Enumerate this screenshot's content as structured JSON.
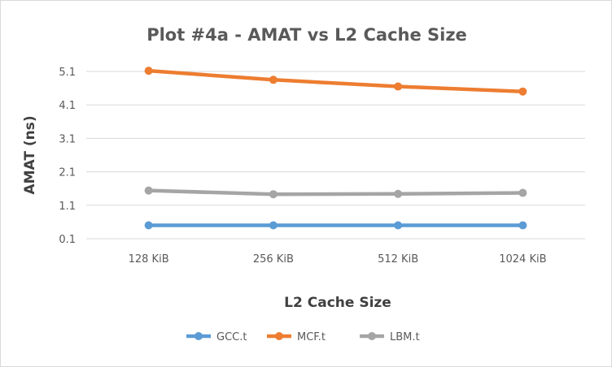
{
  "chart_data": {
    "type": "line",
    "title": "Plot #4a - AMAT vs L2 Cache Size",
    "xlabel": "L2 Cache Size",
    "ylabel": "AMAT (ns)",
    "categories": [
      "128 KiB",
      "256 KiB",
      "512 KiB",
      "1024 KiB"
    ],
    "yticks": [
      "0.1",
      "1.1",
      "2.1",
      "3.1",
      "4.1",
      "5.1"
    ],
    "ylim": [
      0.1,
      5.1
    ],
    "grid": true,
    "legend_position": "bottom",
    "series": [
      {
        "name": "GCC.t",
        "color": "#5b9bd5",
        "values": [
          0.5,
          0.5,
          0.5,
          0.5
        ]
      },
      {
        "name": "MCF.t",
        "color": "#ed7d31",
        "values": [
          5.12,
          4.85,
          4.65,
          4.5
        ]
      },
      {
        "name": "LBM.t",
        "color": "#a5a5a5",
        "values": [
          1.54,
          1.43,
          1.44,
          1.47
        ]
      }
    ]
  }
}
